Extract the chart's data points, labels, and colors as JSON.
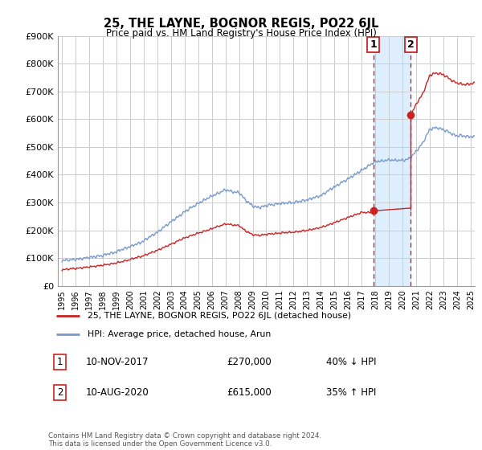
{
  "title": "25, THE LAYNE, BOGNOR REGIS, PO22 6JL",
  "subtitle": "Price paid vs. HM Land Registry's House Price Index (HPI)",
  "ylabel_ticks": [
    "£0",
    "£100K",
    "£200K",
    "£300K",
    "£400K",
    "£500K",
    "£600K",
    "£700K",
    "£800K",
    "£900K"
  ],
  "ylim": [
    0,
    900000
  ],
  "xlim_start": 1994.7,
  "xlim_end": 2025.3,
  "hpi_color": "#7799cc",
  "price_color": "#cc2222",
  "marker1_date": 2017.86,
  "marker1_price": 270000,
  "marker2_date": 2020.61,
  "marker2_price": 615000,
  "marker1_label": "10-NOV-2017",
  "marker1_amount": "£270,000",
  "marker1_pct": "40% ↓ HPI",
  "marker2_label": "10-AUG-2020",
  "marker2_amount": "£615,000",
  "marker2_pct": "35% ↑ HPI",
  "legend_line1": "25, THE LAYNE, BOGNOR REGIS, PO22 6JL (detached house)",
  "legend_line2": "HPI: Average price, detached house, Arun",
  "footer": "Contains HM Land Registry data © Crown copyright and database right 2024.\nThis data is licensed under the Open Government Licence v3.0.",
  "background_color": "#ffffff",
  "grid_color": "#cccccc",
  "shade_color": "#ddeeff"
}
